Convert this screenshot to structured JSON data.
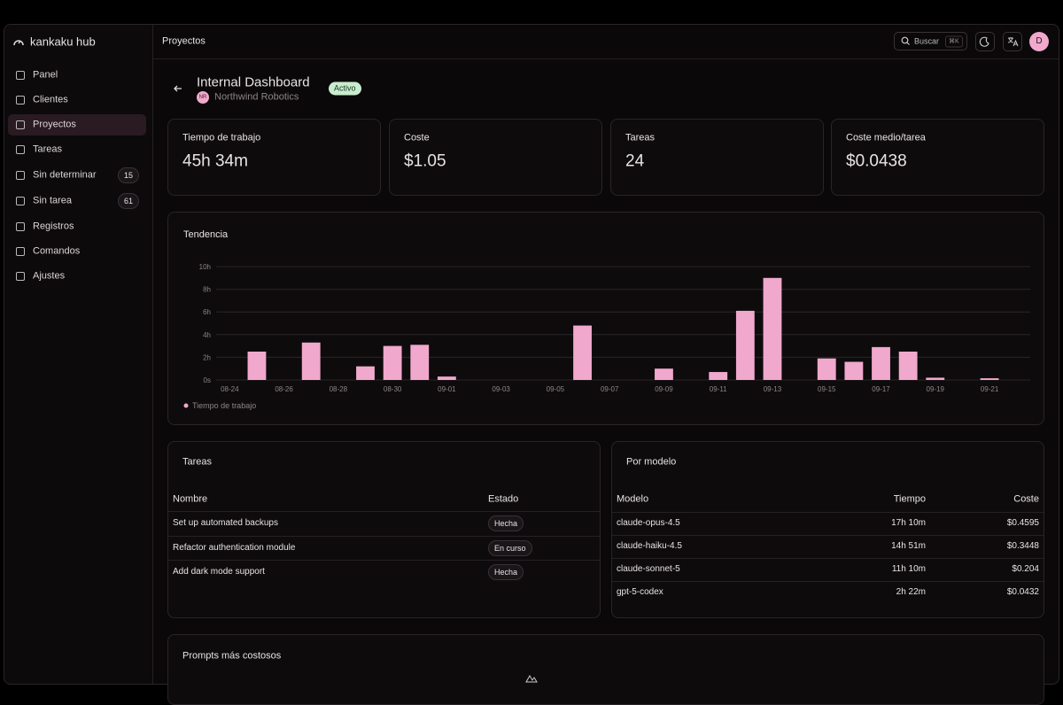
{
  "sidebar": {
    "brand": "kankaku hub",
    "items": [
      {
        "label": "Panel"
      },
      {
        "label": "Clientes"
      },
      {
        "label": "Proyectos",
        "active": true
      },
      {
        "label": "Tareas"
      },
      {
        "label": "Sin determinar",
        "badge": 15
      },
      {
        "label": "Sin tarea",
        "badge": 61
      },
      {
        "label": "Registros"
      },
      {
        "label": "Comandos"
      },
      {
        "label": "Ajustes"
      }
    ]
  },
  "header": {
    "breadcrumb": "Proyectos",
    "search": "Buscar",
    "shortcut": "⌘K",
    "avatar": "D"
  },
  "project": {
    "name": "Internal Dashboard",
    "status": "Activo",
    "client_initials": "NR",
    "client": "Northwind Robotics"
  },
  "stats": [
    {
      "label": "Tiempo de trabajo",
      "value": "45h 34m"
    },
    {
      "label": "Coste",
      "value": "$1.05"
    },
    {
      "label": "Tareas",
      "value": "24"
    },
    {
      "label": "Coste medio/tarea",
      "value": "$0.0438"
    }
  ],
  "chart_data": {
    "type": "bar",
    "title": "Tendencia",
    "categories": [
      "08-24",
      null,
      "08-26",
      null,
      "08-28",
      null,
      "08-30",
      null,
      "09-01",
      null,
      "09-03",
      null,
      "09-05",
      null,
      "09-07",
      null,
      "09-09",
      null,
      "09-11",
      null,
      "09-13",
      null,
      "09-15",
      null,
      "09-17",
      null,
      "09-19",
      null,
      "09-21",
      null
    ],
    "series": [
      {
        "name": "Tiempo de trabajo",
        "color": "#f0a8cc",
        "values": [
          0,
          2.5,
          0,
          3.3,
          0,
          1.2,
          3.0,
          3.1,
          0.3,
          0,
          0,
          0,
          0,
          4.8,
          0,
          0,
          1.0,
          0,
          0.7,
          6.1,
          9.0,
          0,
          1.9,
          1.6,
          2.9,
          2.5,
          0.2,
          0,
          0.15,
          0
        ]
      }
    ],
    "ylim": [
      0,
      10
    ],
    "yticks": [
      {
        "value": 0,
        "label": "0s"
      },
      {
        "value": 2,
        "label": "2h"
      },
      {
        "value": 4,
        "label": "4h"
      },
      {
        "value": 6,
        "label": "6h"
      },
      {
        "value": 8,
        "label": "8h"
      },
      {
        "value": 10,
        "label": "10h"
      }
    ],
    "grid": true
  },
  "tasks": {
    "title": "Tareas",
    "columns": [
      "Nombre",
      "Estado"
    ],
    "rows": [
      [
        "Set up automated backups",
        "Hecha"
      ],
      [
        "Refactor authentication module",
        "En curso"
      ],
      [
        "Add dark mode support",
        "Hecha"
      ]
    ]
  },
  "models": {
    "title": "Por modelo",
    "columns": [
      "Modelo",
      "Tiempo",
      "Coste"
    ],
    "rows": [
      [
        "claude-opus-4.5",
        "17h 10m",
        "$0.4595"
      ],
      [
        "claude-haiku-4.5",
        "14h 51m",
        "$0.3448"
      ],
      [
        "claude-sonnet-5",
        "11h 10m",
        "$0.204"
      ],
      [
        "gpt-5-codex",
        "2h 22m",
        "$0.0432"
      ]
    ]
  },
  "prompts": {
    "title": "Prompts más costosos"
  }
}
